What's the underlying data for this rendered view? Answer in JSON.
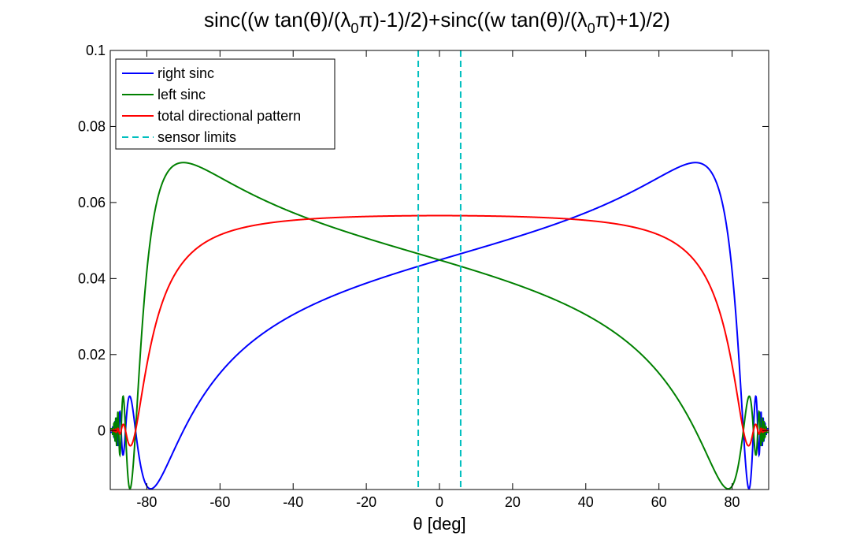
{
  "chart_data": {
    "type": "line",
    "title_parts": {
      "part1": "sinc((w tan(θ)/(λ",
      "sub1": "0",
      "part2": "π)-1)/2)+sinc((w tan(θ)/(λ",
      "sub2": "0",
      "part3": "π)+1)/2)"
    },
    "xlabel": "θ [deg]",
    "ylabel": "",
    "xlim": [
      -90,
      90
    ],
    "ylim": [
      -0.0155,
      0.1
    ],
    "xticks": [
      -80,
      -60,
      -40,
      -20,
      0,
      20,
      40,
      60,
      80
    ],
    "xtick_labels": [
      "-80",
      "-60",
      "-40",
      "-20",
      "0",
      "20",
      "40",
      "60",
      "80"
    ],
    "yticks": [
      0,
      0.02,
      0.04,
      0.06,
      0.08,
      0.1
    ],
    "ytick_labels": [
      "0",
      "0.02",
      "0.04",
      "0.06",
      "0.08",
      "0.1"
    ],
    "grid": false,
    "legend_placement": "top-left",
    "model": {
      "x_units": "deg",
      "a": 0.0705,
      "theta_half_power_deg": 70.0
    },
    "series": [
      {
        "name": "right sinc",
        "color": "#0000ff",
        "style": "solid",
        "kind": "right"
      },
      {
        "name": "left sinc",
        "color": "#008000",
        "style": "solid",
        "kind": "left"
      },
      {
        "name": "total directional pattern",
        "color": "#ff0000",
        "style": "solid",
        "kind": "total"
      },
      {
        "name": "sensor limits",
        "color": "#00bfbf",
        "style": "dashed",
        "kind": "vline",
        "x": [
          -5.8,
          5.8
        ]
      }
    ]
  }
}
